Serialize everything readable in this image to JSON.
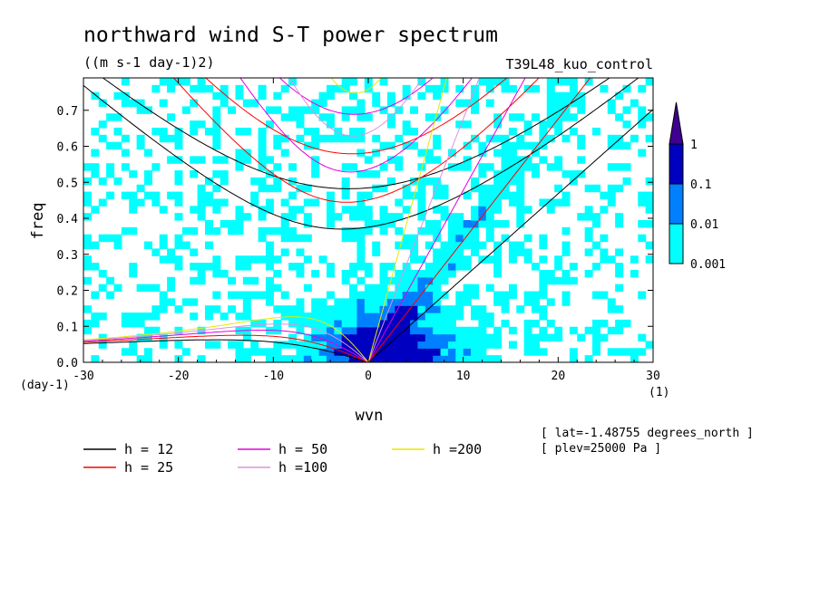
{
  "chart_data": {
    "type": "heatmap",
    "title": "northward wind S-T power spectrum",
    "units": "((m s-1 day-1)2)",
    "experiment": "T39L48_kuo_control",
    "xlabel": "wvn",
    "ylabel": "freq",
    "x_unit_label": "(1)",
    "y_unit_label": "(day-1)",
    "xlim": [
      -30,
      30
    ],
    "ylim": [
      0,
      0.79
    ],
    "x_ticks": [
      -30,
      -20,
      -10,
      0,
      10,
      20,
      30
    ],
    "x_tick_labels": [
      "-30",
      "-20",
      "-10",
      "0",
      "10",
      "20",
      "30"
    ],
    "y_ticks": [
      0.0,
      0.1,
      0.2,
      0.3,
      0.4,
      0.5,
      0.6,
      0.7
    ],
    "y_tick_labels": [
      "0.0",
      "0.1",
      "0.2",
      "0.3",
      "0.4",
      "0.5",
      "0.6",
      "0.7"
    ],
    "colorbar": {
      "levels": [
        "0.001",
        "0.01",
        "0.1",
        "1"
      ],
      "colors": [
        "#00ffff",
        "#0080ff",
        "#0000c0",
        "#400090"
      ]
    },
    "field_note": "filled contours of spectral power; strongest (0.1-1) near wvn 0 to 5 at freq < 0.15",
    "dispersion_curves": [
      {
        "label": "h = 12",
        "h": 12,
        "color": "#000000"
      },
      {
        "label": "h = 25",
        "h": 25,
        "color": "#ff0000"
      },
      {
        "label": "h = 50",
        "h": 50,
        "color": "#e000e0"
      },
      {
        "label": "h =100",
        "h": 100,
        "color": "#e090e0"
      },
      {
        "label": "h =200",
        "h": 200,
        "color": "#e8e800"
      }
    ],
    "annotations": [
      "[ lat=-1.48755 degrees_north ]",
      "[ plev=25000 Pa ]"
    ]
  }
}
